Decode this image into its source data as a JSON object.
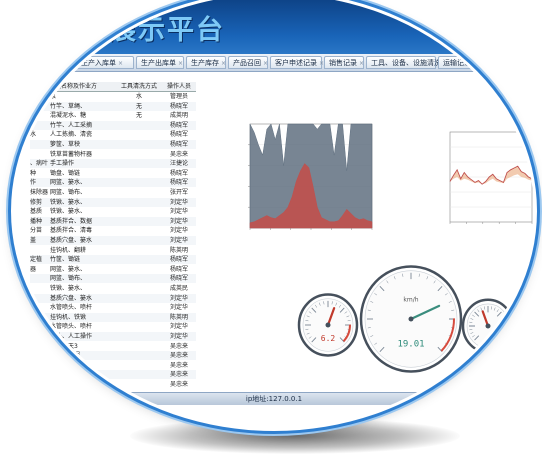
{
  "app": {
    "title": "展示平台"
  },
  "tabs": [
    {
      "label": "生产入库单"
    },
    {
      "label": "生产出库单"
    },
    {
      "label": "生产库存"
    },
    {
      "label": "产品召回"
    },
    {
      "label": "客户申述记录"
    },
    {
      "label": "销售记录"
    },
    {
      "label": "工具、设备、设施清洗"
    },
    {
      "label": "运输记录"
    }
  ],
  "table": {
    "columns": [
      "工具名称及作业方",
      "工具清洗方式",
      "操作人员"
    ],
    "rows": [
      [
        "",
        "泵",
        "水",
        "管理员"
      ],
      [
        "",
        "竹竿、草绳、",
        "无",
        "杨晓军"
      ],
      [
        "",
        "混凝泥水、糖",
        "无",
        "成英明"
      ],
      [
        "",
        "竹竿、人工采摘",
        "",
        "杨晓军"
      ],
      [
        "水",
        "人工拣摘、清瓷",
        "",
        "杨晓军"
      ],
      [
        "",
        "箩筐、草秧",
        "",
        "杨晓军"
      ],
      [
        "",
        "铁草苗蓄物杆器",
        "",
        "吴忠来"
      ],
      [
        "、病叶",
        "手工操作",
        "",
        "汪捷论"
      ],
      [
        "种",
        "锄盘、锄链",
        "",
        "杨晓军"
      ],
      [
        "作",
        "网篮、篓水、",
        "",
        "杨晓军"
      ],
      [
        "抹除器",
        "网篮、锄布、",
        "",
        "张开军"
      ],
      [
        "修剪",
        "铁锹、篓水、",
        "",
        "刘定华"
      ],
      [
        "基质",
        "铁锹、篓水、",
        "",
        "刘定华"
      ],
      [
        "播种",
        "基质拌合、数据",
        "",
        "刘定华"
      ],
      [
        "分苗",
        "基质拌合、清毒",
        "",
        "刘定华"
      ],
      [
        "盖",
        "基质穴盘、篓水",
        "",
        "刘定华"
      ],
      [
        "",
        "挂钩机、翻耕",
        "",
        "陈英明"
      ],
      [
        "定植",
        "竹筐、锄链",
        "",
        "杨晓军"
      ],
      [
        "器",
        "网篮、篓水、",
        "",
        "杨晓军"
      ],
      [
        "",
        "网篮、锄布、",
        "",
        "杨晓军"
      ],
      [
        "",
        "铁锹、篓水、",
        "",
        "成英民"
      ],
      [
        "",
        "基质穴盘、篓水",
        "",
        "刘定华"
      ],
      [
        "",
        "水管喷头、喷杆",
        "",
        "刘定华"
      ],
      [
        "",
        "挂钩机、铁锹",
        "",
        "陈英明"
      ],
      [
        "",
        "水管喷头、喷杆",
        "",
        "刘定华"
      ],
      [
        "",
        "喷头、人工操作",
        "",
        "刘定华"
      ],
      [
        "",
        "具、每天3",
        "",
        "吴忠来"
      ],
      [
        "",
        "喷头、挖掘",
        "",
        "吴忠来"
      ],
      [
        "",
        "",
        "",
        "吴忠来"
      ],
      [
        "",
        "",
        "",
        "吴忠来"
      ],
      [
        "",
        "",
        "",
        "吴忠来"
      ]
    ]
  },
  "chart_data": [
    {
      "type": "area",
      "title": "",
      "xlabel": "",
      "ylabel": "",
      "series": [
        {
          "color": "#c0504d",
          "values": [
            5,
            6,
            8,
            10,
            12,
            10,
            9,
            12,
            15,
            20,
            30,
            45,
            55,
            62,
            58,
            40,
            20,
            10,
            8,
            6,
            6,
            7,
            12,
            18,
            14,
            10,
            8,
            9,
            7,
            6
          ]
        },
        {
          "color": "#607080",
          "values": [
            100,
            92,
            80,
            70,
            95,
            100,
            85,
            100,
            60,
            100,
            100,
            100,
            100,
            100,
            100,
            100,
            95,
            100,
            100,
            100,
            70,
            100,
            100,
            55,
            100,
            100,
            100,
            100,
            100,
            100
          ]
        }
      ]
    },
    {
      "type": "area",
      "title": "",
      "xlabel": "",
      "ylabel": "",
      "series": [
        {
          "color": "#c0504d",
          "values": [
            45,
            52,
            58,
            48,
            55,
            50,
            47,
            44,
            46,
            42,
            45,
            50,
            53,
            48,
            46,
            44,
            55,
            58,
            60,
            62,
            56,
            54,
            50,
            48
          ]
        },
        {
          "color": "#e8a070",
          "values": [
            45,
            48,
            50,
            46,
            48,
            47,
            45,
            43,
            44,
            42,
            43,
            46,
            48,
            45,
            44,
            43,
            48,
            50,
            52,
            53,
            50,
            49,
            47,
            46
          ]
        }
      ]
    }
  ],
  "gauges": [
    {
      "value": "6.2",
      "unit": "",
      "value_color": "#c0392b"
    },
    {
      "value": "19.01",
      "unit": "km/h",
      "value_color": "#2e8b7a"
    },
    {
      "value": "",
      "unit": "",
      "value_color": "#c0392b"
    }
  ],
  "status": {
    "text": "ip地址:127.0.0.1"
  }
}
